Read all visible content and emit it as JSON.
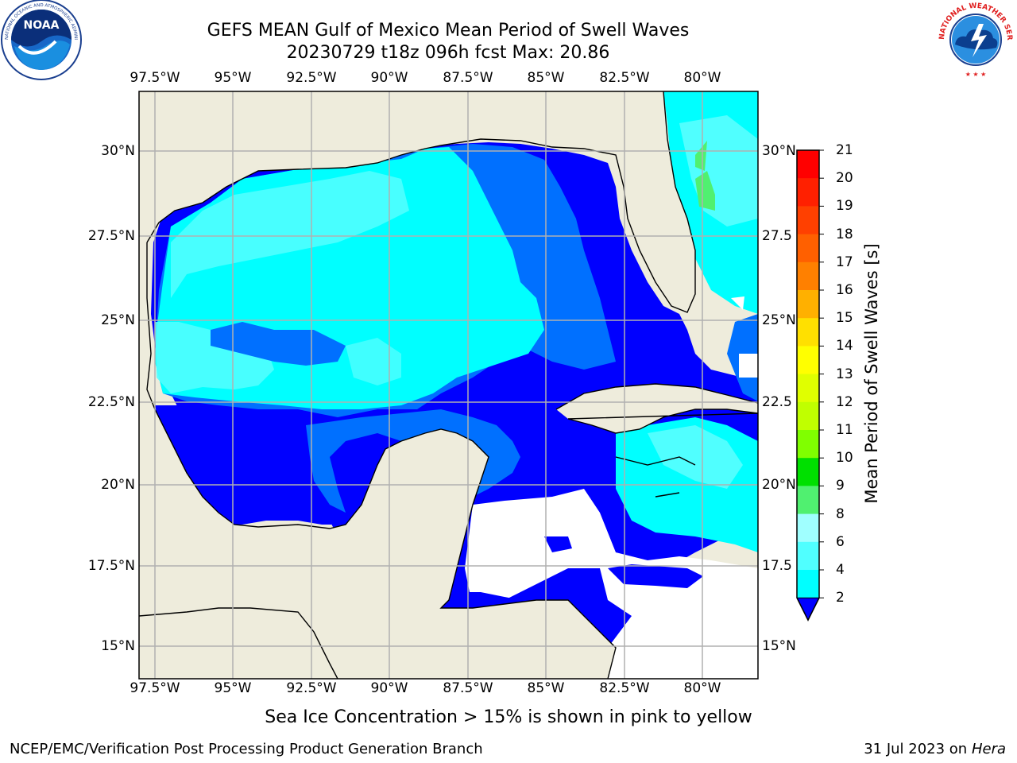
{
  "title_line1": "GEFS MEAN Gulf of Mexico Mean Period of Swell Waves",
  "title_line2": "20230729 t18z 096h fcst   Max: 20.86",
  "note": "Sea Ice Concentration > 15% is shown in pink to yellow",
  "footer_left": "NCEP/EMC/Verification Post Processing Product Generation Branch",
  "footer_right_date": "31 Jul 2023 on ",
  "footer_right_machine": "Hera",
  "logos": {
    "left": "noaa-logo",
    "right": "national-weather-service-logo"
  },
  "logo_text": {
    "noaa": "NOAA",
    "noaa_ring": "NATIONAL OCEANIC AND ATMOSPHERIC ADMINISTRATION · U.S. DEPARTMENT OF COMMERCE",
    "nws_ring": "NATIONAL WEATHER SERVICE"
  },
  "lon_labels": [
    "97.5°W",
    "95°W",
    "92.5°W",
    "90°W",
    "87.5°W",
    "85°W",
    "82.5°W",
    "80°W"
  ],
  "lat_labels_left": [
    "30°N",
    "27.5°N",
    "25°N",
    "22.5°N",
    "20°N",
    "17.5°N",
    "15°N"
  ],
  "lat_labels_right": [
    "30°N",
    "27.5",
    "25°N",
    "22.5",
    "20°N",
    "17.5",
    "15°N"
  ],
  "colorbar": {
    "label": "Mean Period of Swell Waves [s]",
    "ticks": [
      "21",
      "20",
      "19",
      "18",
      "17",
      "16",
      "15",
      "14",
      "13",
      "12",
      "11",
      "10",
      "9",
      "8",
      "6",
      "4",
      "2"
    ],
    "colors": [
      "#ff0000",
      "#ff2000",
      "#ff4000",
      "#ff6000",
      "#ff8000",
      "#ffb000",
      "#ffe000",
      "#ffff00",
      "#e0ff00",
      "#c0ff00",
      "#80ff00",
      "#00e000",
      "#50f070",
      "#a0ffff",
      "#50ffff",
      "#00ffff",
      "#0070ff"
    ],
    "extend_color": "#0000ff"
  },
  "map": {
    "lon_range": [
      -98,
      -78.3
    ],
    "lat_range": [
      14,
      31.8
    ],
    "land_color": "#eeecdc",
    "gridline_color": "#b0b0b0",
    "ocean_undefined_color": "#ffffff"
  }
}
